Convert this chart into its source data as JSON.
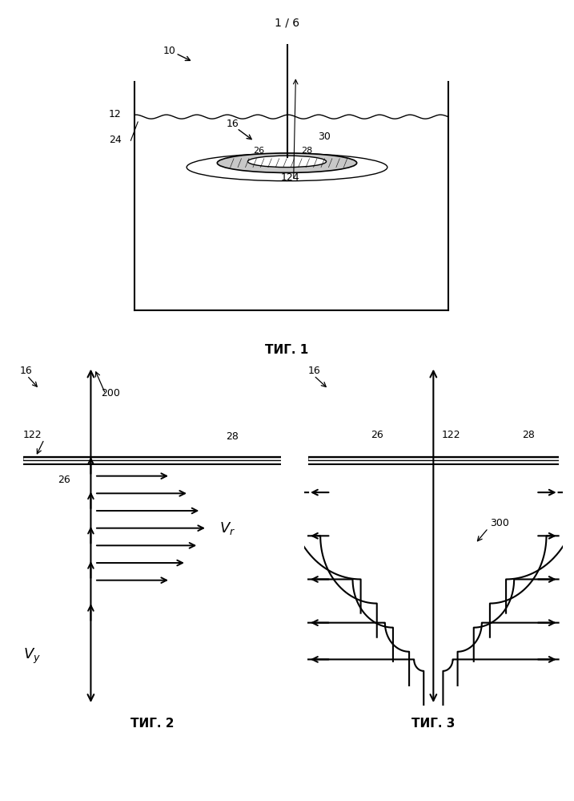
{
  "page_label": "1 / 6",
  "fig1_label": "ΤИГ. 1",
  "fig2_label": "ΤИГ. 2",
  "fig3_label": "ΤИГ. 3",
  "bg_color": "#ffffff"
}
